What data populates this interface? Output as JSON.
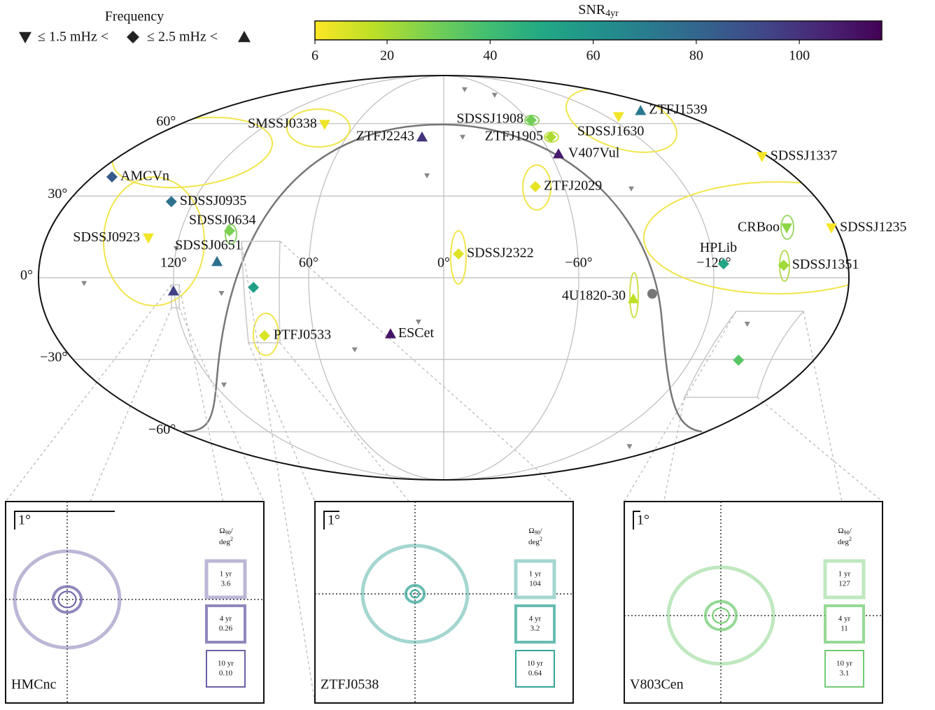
{
  "chart_data": {
    "type": "skymap",
    "projection": "mollweide",
    "colorbar": {
      "title": "SNR",
      "title_sub": "4yr",
      "cmap": "viridis_r",
      "lim": [
        6,
        116
      ],
      "ticks": [
        6,
        20,
        40,
        60,
        80,
        100
      ]
    },
    "legend": {
      "title": "Frequency",
      "labels": [
        "≤ 1.5 mHz <",
        "≤ 2.5 mHz <"
      ]
    },
    "lon_ticks": [
      {
        "value": 120,
        "label": "120°"
      },
      {
        "value": 60,
        "label": "60°"
      },
      {
        "value": 0,
        "label": "0°"
      },
      {
        "value": -60,
        "label": "−60°"
      },
      {
        "value": -120,
        "label": "−120°"
      }
    ],
    "lat_ticks": [
      {
        "value": 60,
        "label": "60°"
      },
      {
        "value": 30,
        "label": "30°"
      },
      {
        "value": 0,
        "label": "0°"
      },
      {
        "value": -30,
        "label": "−30°"
      },
      {
        "value": -60,
        "label": "−60°"
      }
    ],
    "sources": [
      {
        "name": "AMCVn",
        "lon": 170.0,
        "lat": 37.4,
        "snr": 85,
        "freq_bin": 1
      },
      {
        "name": "SDSSJ0935",
        "lon": 130.6,
        "lat": 27.9,
        "snr": 75,
        "freq_bin": 1
      },
      {
        "name": "SDSSJ0923",
        "lon": 133.8,
        "lat": 14.4,
        "snr": 8,
        "freq_bin": 0
      },
      {
        "name": "SDSSJ0634",
        "lon": 97.8,
        "lat": 17.0,
        "snr": 28,
        "freq_bin": 1
      },
      {
        "name": "SDSSJ0651",
        "lon": 101.0,
        "lat": 5.8,
        "snr": 75,
        "freq_bin": 2
      },
      {
        "name": null,
        "lon": 120.3,
        "lat": -4.8,
        "snr": 95,
        "freq_bin": 2
      },
      {
        "name": null,
        "lon": 84.6,
        "lat": -3.5,
        "snr": 55,
        "freq_bin": 1
      },
      {
        "name": "PTFJ0533",
        "lon": 83.1,
        "lat": -21.1,
        "snr": 12,
        "freq_bin": 1
      },
      {
        "name": "ESCet",
        "lon": 24.6,
        "lat": -20.4,
        "snr": 110,
        "freq_bin": 2
      },
      {
        "name": "SMSSJ0338",
        "lon": 81.1,
        "lat": 59.6,
        "snr": 9,
        "freq_bin": 0
      },
      {
        "name": "ZTFJ2243",
        "lon": 13.4,
        "lat": 53.9,
        "snr": 100,
        "freq_bin": 2
      },
      {
        "name": "SDSSJ1908",
        "lon": -62.0,
        "lat": 61.6,
        "snr": 30,
        "freq_bin": 1
      },
      {
        "name": "ZTFJ1905",
        "lon": -66.2,
        "lat": 53.9,
        "snr": 20,
        "freq_bin": 1
      },
      {
        "name": "V407Vul",
        "lon": -64.5,
        "lat": 46.7,
        "snr": 108,
        "freq_bin": 2
      },
      {
        "name": "ZTFJ1539",
        "lon": -155.4,
        "lat": 66.3,
        "snr": 72,
        "freq_bin": 2
      },
      {
        "name": "SDSSJ1630",
        "lon": -128.5,
        "lat": 63.3,
        "snr": 8,
        "freq_bin": 0
      },
      {
        "name": "SDSSJ1337",
        "lon": -176.6,
        "lat": 45.6,
        "snr": 7,
        "freq_bin": 0
      },
      {
        "name": "ZTFJ2029",
        "lon": -45.6,
        "lat": 33.6,
        "snr": 10,
        "freq_bin": 1
      },
      {
        "name": "SDSSJ2322",
        "lon": -6.6,
        "lat": 8.6,
        "snr": 11,
        "freq_bin": 1
      },
      {
        "name": "CRBoo",
        "lon": -157.2,
        "lat": 18.1,
        "snr": 25,
        "freq_bin": 0
      },
      {
        "name": "SDSSJ1235",
        "lon": -177.7,
        "lat": 18.1,
        "snr": 7,
        "freq_bin": 0
      },
      {
        "name": "HPLib",
        "lon": -124.6,
        "lat": 5.0,
        "snr": 52,
        "freq_bin": 1
      },
      {
        "name": "SDSSJ1351",
        "lon": -151.3,
        "lat": 4.5,
        "snr": 22,
        "freq_bin": 1
      },
      {
        "name": "4U1820-30",
        "lon": -84.7,
        "lat": -7.6,
        "snr": 17,
        "freq_bin": 2
      },
      {
        "name": null,
        "lon": -143.4,
        "lat": -30.3,
        "snr": 35,
        "freq_bin": 1
      }
    ],
    "others": {
      "color": "#888888",
      "lon": [
        -25.5,
        -52.8,
        -11.7,
        8.6,
        -92.8,
        159.8,
        99.0,
        120.1,
        11.5,
        42.3,
        115.1,
        -149.8,
        -138.5
      ],
      "lat": [
        78.1,
        74.7,
        53.9,
        37.9,
        32.8,
        -2.0,
        -5.6,
        10.6,
        -16.0,
        -26.3,
        -39.9,
        -67.1,
        -16.8
      ]
    },
    "insets": [
      {
        "name": "HMCnc",
        "color": "#6b5fa5",
        "scale_label": "1°",
        "durations": [
          "1 yr",
          "4 yr",
          "10 yr"
        ],
        "areas": [
          3.6,
          0.26,
          0.1
        ],
        "area_labels": [
          "3.6",
          "0.26",
          "0.10"
        ]
      },
      {
        "name": "ZTFJ0538",
        "color": "#35a597",
        "scale_label": "1°",
        "durations": [
          "1 yr",
          "4 yr",
          "10 yr"
        ],
        "areas": [
          104,
          3.2,
          0.64
        ],
        "area_labels": [
          "104",
          "3.2",
          "0.64"
        ]
      },
      {
        "name": "V803Cen",
        "color": "#72cc72",
        "scale_label": "1°",
        "durations": [
          "1 yr",
          "4 yr",
          "10 yr"
        ],
        "areas": [
          127,
          11,
          3.1
        ],
        "area_labels": [
          "127",
          "11",
          "3.1"
        ]
      }
    ],
    "area_header": {
      "symbol": "Ω",
      "sub": "90",
      "slash": "/",
      "unit": "deg",
      "sup": "2"
    }
  }
}
